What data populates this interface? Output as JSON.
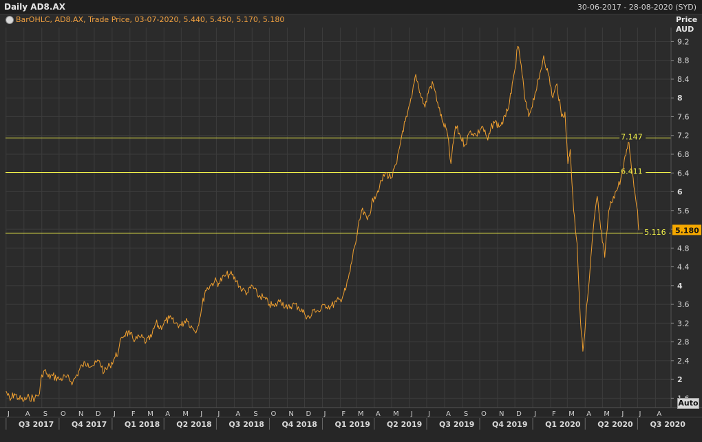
{
  "header": {
    "title": "Daily AD8.AX",
    "date_range": "30-06-2017 - 28-08-2020 (SYD)",
    "legend": "BarOHLC, AD8.AX, Trade Price, 03-07-2020, 5.440, 5.450, 5.170, 5.180",
    "axis_title_line1": "Price",
    "axis_title_line2": "AUD",
    "auto_label": "Auto"
  },
  "colors": {
    "background": "#2b2b2b",
    "price_line": "#f0a030",
    "support_lines": "#f2f24a",
    "last_price_badge": "#f5a800",
    "grid": "#3c3c3c"
  },
  "chart_data": {
    "type": "line",
    "title": "Daily AD8.AX",
    "ylabel": "Price AUD",
    "ylim": [
      1.4,
      9.5
    ],
    "x_range": [
      "2017-06-30",
      "2020-08-28"
    ],
    "y_ticks": [
      {
        "value": 1.6,
        "label": "1.6"
      },
      {
        "value": 2.0,
        "label": "2"
      },
      {
        "value": 2.4,
        "label": "2.4"
      },
      {
        "value": 2.8,
        "label": "2.8"
      },
      {
        "value": 3.2,
        "label": "3.2"
      },
      {
        "value": 3.6,
        "label": "3.6"
      },
      {
        "value": 4.0,
        "label": "4"
      },
      {
        "value": 4.4,
        "label": "4.4"
      },
      {
        "value": 4.8,
        "label": "4.8"
      },
      {
        "value": 5.2,
        "label": "5.2"
      },
      {
        "value": 5.6,
        "label": "5.6"
      },
      {
        "value": 6.0,
        "label": "6"
      },
      {
        "value": 6.4,
        "label": "6.4"
      },
      {
        "value": 6.8,
        "label": "6.8"
      },
      {
        "value": 7.2,
        "label": "7.2"
      },
      {
        "value": 7.6,
        "label": "7.6"
      },
      {
        "value": 8.0,
        "label": "8"
      },
      {
        "value": 8.4,
        "label": "8.4"
      },
      {
        "value": 8.8,
        "label": "8.8"
      },
      {
        "value": 9.2,
        "label": "9.2"
      }
    ],
    "month_ticks": [
      {
        "date": "2017-07-01",
        "label": "J"
      },
      {
        "date": "2017-08-01",
        "label": "A"
      },
      {
        "date": "2017-09-01",
        "label": "S"
      },
      {
        "date": "2017-10-01",
        "label": "O"
      },
      {
        "date": "2017-11-01",
        "label": "N"
      },
      {
        "date": "2017-12-01",
        "label": "D"
      },
      {
        "date": "2018-01-01",
        "label": "J"
      },
      {
        "date": "2018-02-01",
        "label": "F"
      },
      {
        "date": "2018-03-01",
        "label": "M"
      },
      {
        "date": "2018-04-01",
        "label": "A"
      },
      {
        "date": "2018-05-01",
        "label": "M"
      },
      {
        "date": "2018-06-01",
        "label": "J"
      },
      {
        "date": "2018-07-01",
        "label": "J"
      },
      {
        "date": "2018-08-01",
        "label": "A"
      },
      {
        "date": "2018-09-01",
        "label": "S"
      },
      {
        "date": "2018-10-01",
        "label": "O"
      },
      {
        "date": "2018-11-01",
        "label": "N"
      },
      {
        "date": "2018-12-01",
        "label": "D"
      },
      {
        "date": "2019-01-01",
        "label": "J"
      },
      {
        "date": "2019-02-01",
        "label": "F"
      },
      {
        "date": "2019-03-01",
        "label": "M"
      },
      {
        "date": "2019-04-01",
        "label": "A"
      },
      {
        "date": "2019-05-01",
        "label": "M"
      },
      {
        "date": "2019-06-01",
        "label": "J"
      },
      {
        "date": "2019-07-01",
        "label": "J"
      },
      {
        "date": "2019-08-01",
        "label": "A"
      },
      {
        "date": "2019-09-01",
        "label": "S"
      },
      {
        "date": "2019-10-01",
        "label": "O"
      },
      {
        "date": "2019-11-01",
        "label": "N"
      },
      {
        "date": "2019-12-01",
        "label": "D"
      },
      {
        "date": "2020-01-01",
        "label": "J"
      },
      {
        "date": "2020-02-01",
        "label": "F"
      },
      {
        "date": "2020-03-01",
        "label": "M"
      },
      {
        "date": "2020-04-01",
        "label": "A"
      },
      {
        "date": "2020-05-01",
        "label": "M"
      },
      {
        "date": "2020-06-01",
        "label": "J"
      },
      {
        "date": "2020-07-01",
        "label": "J"
      },
      {
        "date": "2020-08-01",
        "label": "A"
      }
    ],
    "quarter_labels": [
      {
        "date": "2017-07-01",
        "label": "Q3 2017"
      },
      {
        "date": "2017-10-01",
        "label": "Q4 2017"
      },
      {
        "date": "2018-01-01",
        "label": "Q1 2018"
      },
      {
        "date": "2018-04-01",
        "label": "Q2 2018"
      },
      {
        "date": "2018-07-01",
        "label": "Q3 2018"
      },
      {
        "date": "2018-10-01",
        "label": "Q4 2018"
      },
      {
        "date": "2019-01-01",
        "label": "Q1 2019"
      },
      {
        "date": "2019-04-01",
        "label": "Q2 2019"
      },
      {
        "date": "2019-07-01",
        "label": "Q3 2019"
      },
      {
        "date": "2019-10-01",
        "label": "Q4 2019"
      },
      {
        "date": "2020-01-01",
        "label": "Q1 2020"
      },
      {
        "date": "2020-04-01",
        "label": "Q2 2020"
      },
      {
        "date": "2020-07-01",
        "label": "Q3 2020"
      }
    ],
    "horizontal_lines": [
      {
        "value": 7.147,
        "label": "7.147"
      },
      {
        "value": 6.411,
        "label": "6.411"
      },
      {
        "value": 5.116,
        "label": "5.116"
      }
    ],
    "last_price": {
      "value": 5.18,
      "label": "5.180"
    },
    "series": [
      {
        "points": [
          [
            "2017-07-01",
            1.75
          ],
          [
            "2017-07-08",
            1.55
          ],
          [
            "2017-07-15",
            1.7
          ],
          [
            "2017-07-22",
            1.6
          ],
          [
            "2017-08-01",
            1.55
          ],
          [
            "2017-08-10",
            1.62
          ],
          [
            "2017-08-20",
            1.6
          ],
          [
            "2017-08-28",
            1.7
          ],
          [
            "2017-09-01",
            2.1
          ],
          [
            "2017-09-06",
            2.2
          ],
          [
            "2017-09-12",
            2.05
          ],
          [
            "2017-09-20",
            2.08
          ],
          [
            "2017-10-01",
            2.0
          ],
          [
            "2017-10-12",
            2.05
          ],
          [
            "2017-10-25",
            1.95
          ],
          [
            "2017-11-01",
            2.1
          ],
          [
            "2017-11-10",
            2.3
          ],
          [
            "2017-11-20",
            2.35
          ],
          [
            "2017-12-01",
            2.3
          ],
          [
            "2017-12-10",
            2.4
          ],
          [
            "2017-12-18",
            2.15
          ],
          [
            "2017-12-28",
            2.3
          ],
          [
            "2018-01-05",
            2.45
          ],
          [
            "2018-01-12",
            2.6
          ],
          [
            "2018-01-18",
            2.9
          ],
          [
            "2018-01-25",
            3.0
          ],
          [
            "2018-02-01",
            2.95
          ],
          [
            "2018-02-10",
            2.85
          ],
          [
            "2018-02-20",
            2.9
          ],
          [
            "2018-03-01",
            2.8
          ],
          [
            "2018-03-10",
            2.9
          ],
          [
            "2018-03-18",
            3.2
          ],
          [
            "2018-03-25",
            3.1
          ],
          [
            "2018-04-01",
            3.2
          ],
          [
            "2018-04-10",
            3.3
          ],
          [
            "2018-04-20",
            3.2
          ],
          [
            "2018-05-01",
            3.15
          ],
          [
            "2018-05-10",
            3.3
          ],
          [
            "2018-05-20",
            3.1
          ],
          [
            "2018-05-28",
            3.05
          ],
          [
            "2018-06-05",
            3.5
          ],
          [
            "2018-06-12",
            3.9
          ],
          [
            "2018-06-20",
            4.0
          ],
          [
            "2018-06-28",
            4.1
          ],
          [
            "2018-07-05",
            4.05
          ],
          [
            "2018-07-15",
            4.2
          ],
          [
            "2018-07-25",
            4.25
          ],
          [
            "2018-08-05",
            4.1
          ],
          [
            "2018-08-15",
            3.9
          ],
          [
            "2018-08-25",
            3.85
          ],
          [
            "2018-09-01",
            4.0
          ],
          [
            "2018-09-10",
            3.8
          ],
          [
            "2018-09-20",
            3.75
          ],
          [
            "2018-10-01",
            3.6
          ],
          [
            "2018-10-10",
            3.55
          ],
          [
            "2018-10-20",
            3.7
          ],
          [
            "2018-11-01",
            3.5
          ],
          [
            "2018-11-10",
            3.6
          ],
          [
            "2018-11-20",
            3.55
          ],
          [
            "2018-12-01",
            3.4
          ],
          [
            "2018-12-10",
            3.3
          ],
          [
            "2018-12-18",
            3.5
          ],
          [
            "2018-12-28",
            3.45
          ],
          [
            "2019-01-05",
            3.6
          ],
          [
            "2019-01-15",
            3.55
          ],
          [
            "2019-01-25",
            3.65
          ],
          [
            "2019-02-01",
            3.7
          ],
          [
            "2019-02-10",
            3.9
          ],
          [
            "2019-02-18",
            4.3
          ],
          [
            "2019-02-25",
            4.8
          ],
          [
            "2019-03-01",
            5.0
          ],
          [
            "2019-03-10",
            5.6
          ],
          [
            "2019-03-20",
            5.4
          ],
          [
            "2019-04-01",
            5.9
          ],
          [
            "2019-04-10",
            6.1
          ],
          [
            "2019-04-20",
            6.4
          ],
          [
            "2019-05-01",
            6.3
          ],
          [
            "2019-05-10",
            6.6
          ],
          [
            "2019-05-20",
            7.3
          ],
          [
            "2019-05-28",
            7.6
          ],
          [
            "2019-06-05",
            8.0
          ],
          [
            "2019-06-12",
            8.5
          ],
          [
            "2019-06-20",
            8.1
          ],
          [
            "2019-06-28",
            7.8
          ],
          [
            "2019-07-05",
            8.2
          ],
          [
            "2019-07-12",
            8.3
          ],
          [
            "2019-07-20",
            7.9
          ],
          [
            "2019-07-28",
            7.5
          ],
          [
            "2019-08-05",
            7.3
          ],
          [
            "2019-08-12",
            6.6
          ],
          [
            "2019-08-20",
            7.4
          ],
          [
            "2019-08-28",
            7.2
          ],
          [
            "2019-09-05",
            7.0
          ],
          [
            "2019-09-15",
            7.3
          ],
          [
            "2019-09-25",
            7.2
          ],
          [
            "2019-10-05",
            7.4
          ],
          [
            "2019-10-15",
            7.1
          ],
          [
            "2019-10-25",
            7.5
          ],
          [
            "2019-11-05",
            7.4
          ],
          [
            "2019-11-15",
            7.6
          ],
          [
            "2019-11-25",
            8.1
          ],
          [
            "2019-12-01",
            8.6
          ],
          [
            "2019-12-06",
            9.1
          ],
          [
            "2019-12-12",
            8.7
          ],
          [
            "2019-12-18",
            8.0
          ],
          [
            "2019-12-25",
            7.6
          ],
          [
            "2020-01-05",
            8.1
          ],
          [
            "2020-01-12",
            8.4
          ],
          [
            "2020-01-20",
            8.9
          ],
          [
            "2020-01-28",
            8.5
          ],
          [
            "2020-02-05",
            8.0
          ],
          [
            "2020-02-12",
            8.3
          ],
          [
            "2020-02-20",
            7.6
          ],
          [
            "2020-02-26",
            7.7
          ],
          [
            "2020-03-02",
            6.6
          ],
          [
            "2020-03-06",
            6.9
          ],
          [
            "2020-03-12",
            5.6
          ],
          [
            "2020-03-18",
            4.9
          ],
          [
            "2020-03-24",
            3.2
          ],
          [
            "2020-03-28",
            2.6
          ],
          [
            "2020-04-02",
            3.3
          ],
          [
            "2020-04-08",
            4.1
          ],
          [
            "2020-04-15",
            5.2
          ],
          [
            "2020-04-22",
            5.9
          ],
          [
            "2020-04-28",
            5.2
          ],
          [
            "2020-05-05",
            4.6
          ],
          [
            "2020-05-12",
            5.6
          ],
          [
            "2020-05-20",
            5.9
          ],
          [
            "2020-05-28",
            6.1
          ],
          [
            "2020-06-05",
            6.4
          ],
          [
            "2020-06-12",
            6.9
          ],
          [
            "2020-06-16",
            7.05
          ],
          [
            "2020-06-22",
            6.4
          ],
          [
            "2020-06-26",
            6.0
          ],
          [
            "2020-07-01",
            5.6
          ],
          [
            "2020-07-03",
            5.18
          ]
        ]
      }
    ]
  }
}
